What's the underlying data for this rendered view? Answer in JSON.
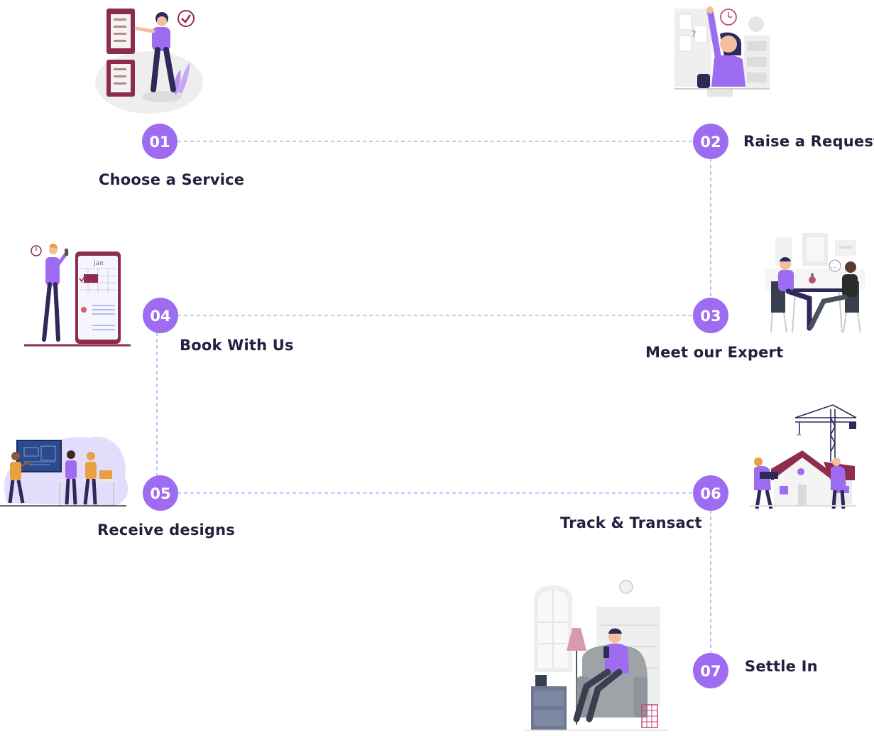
{
  "colors": {
    "accent": "#9d6cf1",
    "dash": "#a7b5f0",
    "text": "#23203f",
    "maroon": "#8e2c4e",
    "lavender": "#e4dcfb"
  },
  "steps": [
    {
      "number": "01",
      "label": "Choose a Service",
      "illustration": "checklist-board-person-icon"
    },
    {
      "number": "02",
      "label": "Raise a Request",
      "illustration": "raising-hand-person-icon"
    },
    {
      "number": "03",
      "label": "Meet our Expert",
      "illustration": "meeting-table-people-icon"
    },
    {
      "number": "04",
      "label": "Book With Us",
      "illustration": "calendar-phone-person-icon"
    },
    {
      "number": "05",
      "label": "Receive designs",
      "illustration": "blueprint-presentation-icon"
    },
    {
      "number": "06",
      "label": "Track & Transact",
      "illustration": "house-construction-crane-icon"
    },
    {
      "number": "07",
      "label": "Settle In",
      "illustration": "armchair-relaxing-person-icon"
    }
  ]
}
